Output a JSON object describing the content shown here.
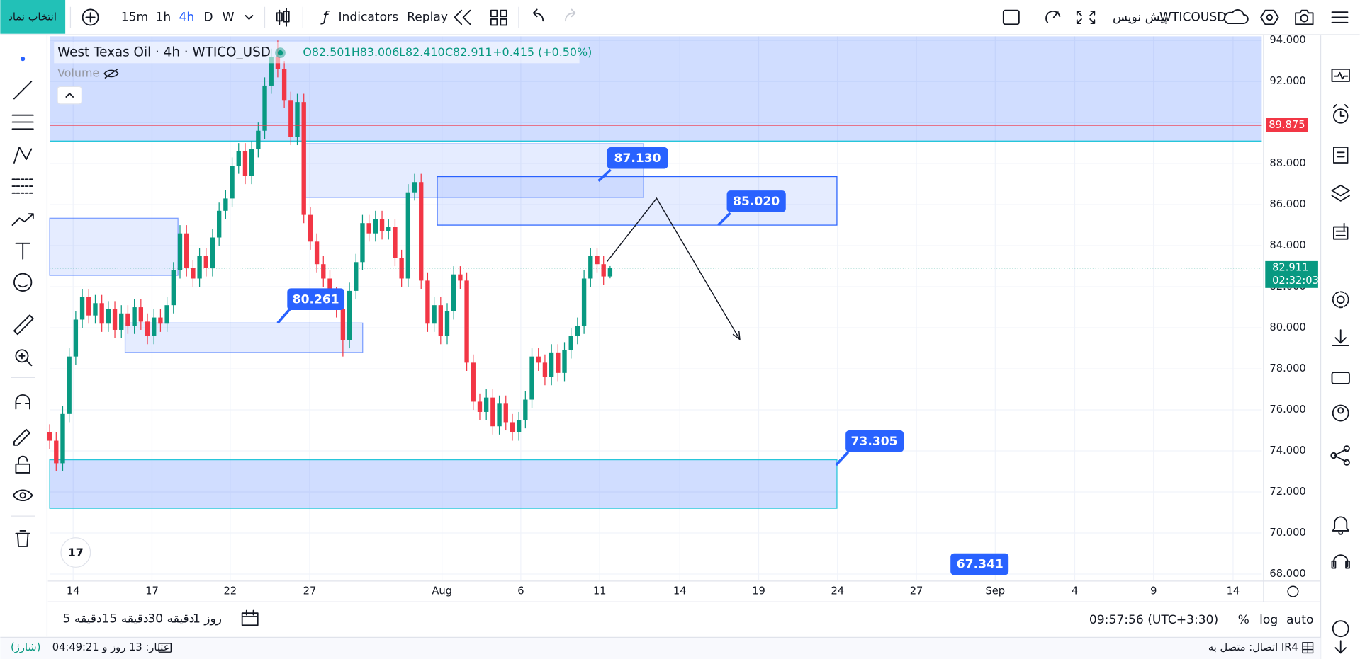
{
  "toolbar": {
    "symbol_button": "انتخاب نماد",
    "intervals": [
      "15m",
      "1h",
      "4h",
      "D",
      "W"
    ],
    "indicators": "Indicators",
    "replay": "Replay",
    "draft": "پیش نویس",
    "symbol": "WTICOUSD"
  },
  "legend": {
    "title": "West Texas Oil · 4h · WTICO_USD",
    "open": "O82.501",
    "high": "H83.006",
    "low": "L82.410",
    "close": "C82.911",
    "change": "+0.415 (+0.50%)",
    "volume": "Volume"
  },
  "chart_data": {
    "type": "candlestick",
    "open": [
      74.9,
      74.5,
      73.4,
      75.8,
      78.6,
      80.4,
      81.5,
      80.6,
      81.2,
      80.2,
      80.9,
      79.9,
      80.7,
      80.1,
      81.0,
      80.3,
      79.6,
      80.5,
      80.2,
      81.1,
      82.8,
      84.6,
      82.9,
      82.4,
      83.5,
      82.9,
      84.4,
      85.7,
      86.3,
      87.9,
      88.6,
      87.4,
      88.7,
      89.6,
      91.8,
      93.2,
      92.6,
      91.1,
      89.3,
      91.0,
      85.5,
      84.2,
      83.1,
      82.4,
      81.6,
      80.9,
      79.4,
      81.8,
      83.2,
      85.1,
      84.6,
      85.3,
      84.7,
      84.9,
      83.4,
      82.4,
      86.6,
      87.1,
      82.3,
      80.2,
      81.1,
      79.6,
      80.8,
      82.6,
      82.3,
      78.3,
      76.4,
      75.9,
      76.6,
      75.2,
      76.3,
      75.4,
      74.9,
      75.5,
      76.5,
      78.6,
      78.3,
      77.6,
      78.8,
      77.8,
      78.9,
      79.6,
      80.1,
      82.4,
      83.5,
      83.1,
      82.5
    ],
    "high": [
      75.3,
      74.9,
      76.2,
      79.0,
      80.8,
      81.9,
      81.9,
      81.6,
      81.6,
      81.3,
      81.3,
      81.1,
      81.1,
      81.4,
      81.4,
      80.7,
      80.9,
      80.9,
      81.5,
      83.2,
      85.0,
      85.0,
      83.3,
      83.9,
      83.9,
      84.8,
      86.1,
      86.7,
      88.3,
      89.0,
      89.0,
      89.1,
      90.0,
      92.2,
      93.6,
      94.0,
      93.0,
      91.5,
      91.4,
      91.4,
      85.9,
      84.6,
      83.5,
      82.8,
      82.0,
      81.3,
      82.2,
      83.6,
      85.5,
      85.5,
      85.7,
      85.7,
      85.3,
      85.3,
      83.8,
      87.0,
      87.5,
      87.5,
      82.7,
      81.5,
      81.5,
      81.2,
      83.0,
      83.0,
      82.7,
      78.7,
      76.8,
      77.0,
      77.0,
      76.7,
      76.7,
      75.8,
      75.9,
      76.9,
      79.0,
      79.0,
      78.7,
      79.2,
      79.2,
      79.3,
      80.0,
      80.5,
      82.8,
      83.9,
      83.9,
      83.5,
      83.006
    ],
    "low": [
      74.1,
      73.0,
      73.0,
      75.4,
      78.2,
      80.0,
      80.2,
      80.2,
      79.8,
      79.8,
      79.5,
      79.5,
      79.7,
      79.7,
      79.9,
      79.2,
      79.2,
      79.8,
      79.8,
      80.7,
      82.4,
      82.5,
      82.0,
      82.0,
      82.5,
      82.5,
      84.0,
      85.3,
      85.9,
      87.5,
      87.0,
      87.0,
      88.3,
      89.2,
      91.4,
      92.2,
      90.7,
      88.9,
      88.9,
      85.1,
      83.8,
      82.7,
      82.0,
      81.2,
      80.5,
      78.6,
      79.0,
      81.4,
      82.8,
      84.2,
      84.2,
      84.3,
      84.3,
      83.0,
      82.0,
      82.0,
      86.2,
      81.9,
      79.8,
      79.8,
      79.2,
      79.2,
      80.4,
      81.9,
      77.9,
      76.0,
      75.5,
      75.5,
      74.8,
      74.8,
      75.0,
      74.5,
      74.5,
      75.1,
      76.1,
      77.9,
      77.2,
      77.2,
      77.4,
      77.4,
      78.5,
      79.2,
      79.7,
      82.0,
      82.7,
      82.1,
      82.41
    ],
    "close": [
      74.5,
      73.4,
      75.8,
      78.6,
      80.4,
      81.5,
      80.6,
      81.2,
      80.2,
      80.9,
      79.9,
      80.7,
      80.1,
      81.0,
      80.3,
      79.6,
      80.5,
      80.2,
      81.1,
      82.8,
      84.6,
      82.9,
      82.4,
      83.5,
      82.9,
      84.4,
      85.7,
      86.3,
      87.9,
      88.6,
      87.4,
      88.7,
      89.6,
      91.8,
      93.2,
      92.6,
      91.1,
      89.3,
      91.0,
      85.5,
      84.2,
      83.1,
      82.4,
      81.6,
      80.9,
      79.4,
      81.8,
      83.2,
      85.1,
      84.6,
      85.3,
      84.7,
      84.9,
      83.4,
      82.4,
      86.6,
      87.1,
      82.3,
      80.2,
      81.1,
      79.6,
      80.8,
      82.6,
      82.3,
      78.3,
      76.4,
      75.9,
      76.6,
      75.2,
      76.3,
      75.4,
      74.9,
      75.5,
      76.5,
      78.6,
      78.3,
      77.6,
      78.8,
      77.8,
      78.9,
      79.6,
      80.1,
      82.4,
      83.5,
      83.1,
      82.5,
      82.911
    ],
    "up_color": "#089981",
    "down_color": "#f23645",
    "xlim": [
      0,
      186
    ],
    "xticks": [
      {
        "value": 3.6,
        "label": "14"
      },
      {
        "value": 15.7,
        "label": "17"
      },
      {
        "value": 27.7,
        "label": "22"
      },
      {
        "value": 39.9,
        "label": "27"
      },
      {
        "value": 60.2,
        "label": "Aug"
      },
      {
        "value": 72.3,
        "label": "6"
      },
      {
        "value": 84.4,
        "label": "11"
      },
      {
        "value": 96.7,
        "label": "14"
      },
      {
        "value": 108.8,
        "label": "19"
      },
      {
        "value": 120.9,
        "label": "24"
      },
      {
        "value": 133.0,
        "label": "27"
      },
      {
        "value": 145.1,
        "label": "Sep"
      },
      {
        "value": 157.3,
        "label": "4"
      },
      {
        "value": 169.4,
        "label": "9"
      },
      {
        "value": 181.6,
        "label": "14"
      }
    ],
    "ylim": [
      67.7,
      94.2
    ],
    "yticks": [
      {
        "value": 68,
        "label": "68.000"
      },
      {
        "value": 70,
        "label": "70.000"
      },
      {
        "value": 72,
        "label": "72.000"
      },
      {
        "value": 74,
        "label": "74.000"
      },
      {
        "value": 76,
        "label": "76.000"
      },
      {
        "value": 78,
        "label": "78.000"
      },
      {
        "value": 80,
        "label": "80.000"
      },
      {
        "value": 82,
        "label": "82.000"
      },
      {
        "value": 84,
        "label": "84.000"
      },
      {
        "value": 86,
        "label": "86.000"
      },
      {
        "value": 88,
        "label": "88.000"
      },
      {
        "value": 90,
        "label": "90.000"
      },
      {
        "value": 92,
        "label": "92.000"
      },
      {
        "value": 94,
        "label": "94.000"
      }
    ],
    "grid": true,
    "alert_line": {
      "value": 89.875,
      "label": "89.875",
      "color": "#f23645"
    },
    "last_price": {
      "value": 82.911,
      "label": "82.911",
      "countdown": "02:32:03",
      "color": "#089981"
    }
  },
  "callouts": [
    "87.130",
    "85.020",
    "80.261",
    "73.305",
    "67.341"
  ],
  "bottom_bar": {
    "ranges": [
      "5 دقیقه",
      "15 دقیقه",
      "30 دقیقه",
      "1 روز"
    ],
    "clock": "09:57:56 (UTC+3:30)",
    "percent": "%",
    "log": "log",
    "auto": "auto"
  },
  "status_bar": {
    "credit": "اعتبار: 13 روز و 04:49:21",
    "charge": "(شارژ)",
    "connection": "اتصال: متصل به IR4"
  }
}
